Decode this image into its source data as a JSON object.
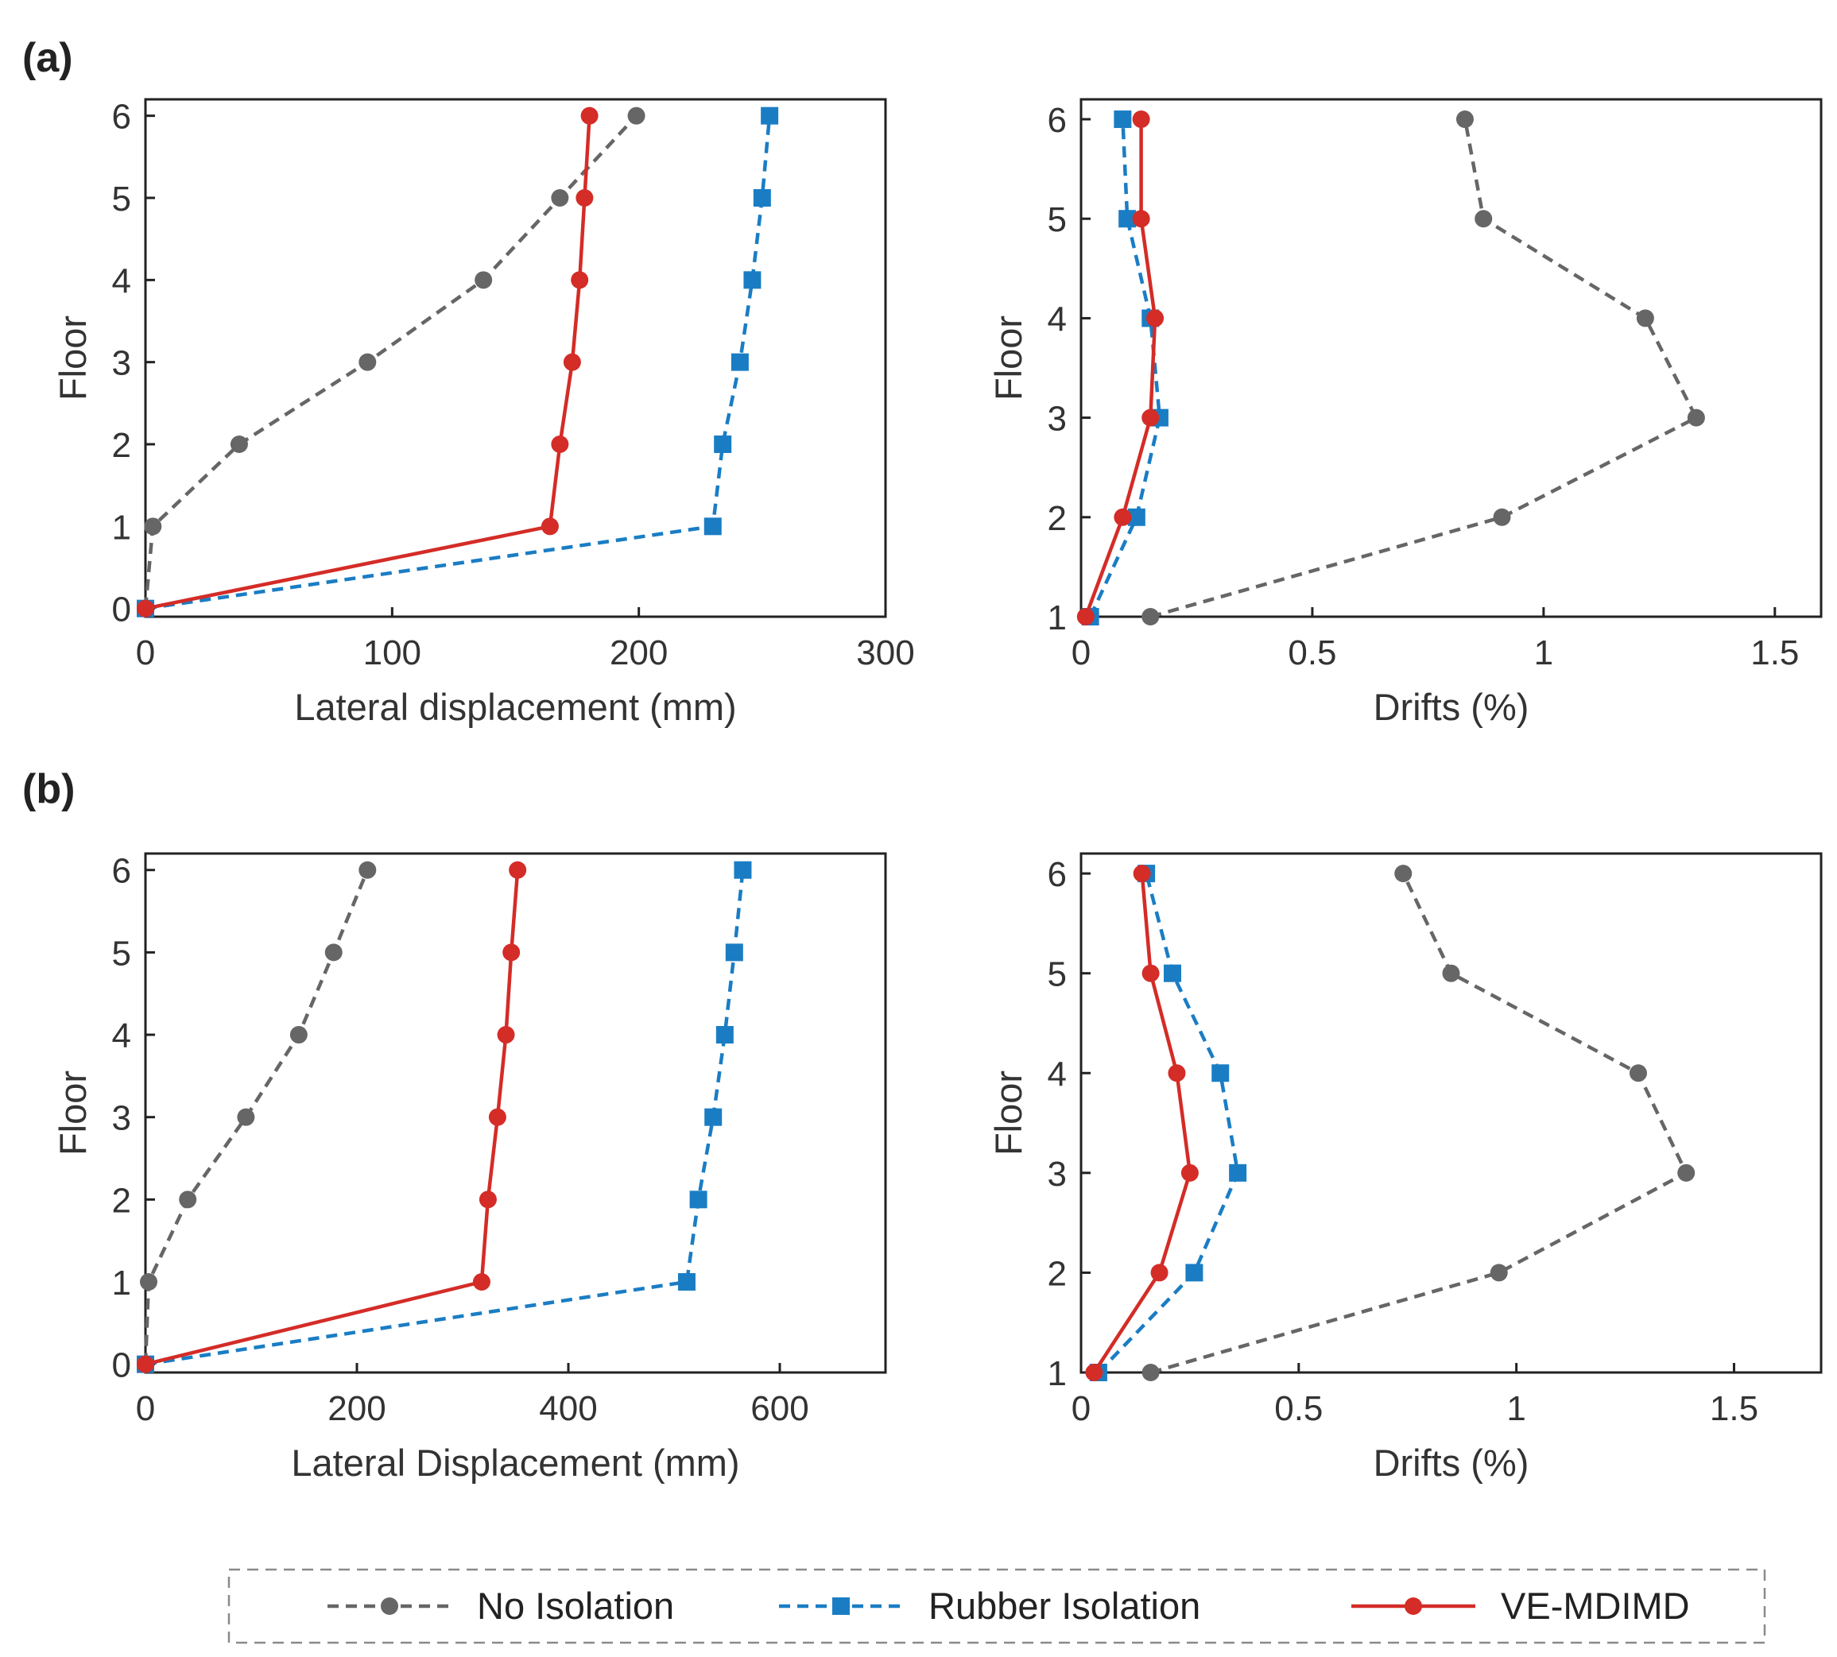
{
  "panel_labels": [
    "(a)",
    "(b)"
  ],
  "series_styles": [
    {
      "name": "No Isolation",
      "color": "#666666",
      "dash": "dashed",
      "marker": "circle"
    },
    {
      "name": "Rubber Isolation",
      "color": "#1a7dc4",
      "dash": "dashed",
      "marker": "square"
    },
    {
      "name": "VE-MDIMD",
      "color": "#d42c27",
      "dash": "solid",
      "marker": "circle"
    }
  ],
  "legend": {
    "entries": [
      "No Isolation",
      "Rubber Isolation",
      "VE-MDIMD"
    ],
    "placement": "bottom-center"
  },
  "chart_data": [
    {
      "id": "a-displacement",
      "panel": "(a)",
      "type": "line",
      "xlabel": "Lateral displacement (mm)",
      "ylabel": "Floor",
      "xlim": [
        0,
        300
      ],
      "ylim": [
        -0.1,
        6.2
      ],
      "xticks": [
        0,
        100,
        200,
        300
      ],
      "yticks": [
        0,
        1,
        2,
        3,
        4,
        5,
        6
      ],
      "y": [
        0,
        1,
        2,
        3,
        4,
        5,
        6
      ],
      "series": [
        {
          "name": "No Isolation",
          "x": [
            0,
            3,
            38,
            90,
            137,
            168,
            199
          ]
        },
        {
          "name": "Rubber Isolation",
          "x": [
            0,
            230,
            234,
            241,
            246,
            250,
            253
          ]
        },
        {
          "name": "VE-MDIMD",
          "x": [
            0,
            164,
            168,
            173,
            176,
            178,
            180
          ]
        }
      ]
    },
    {
      "id": "a-drift",
      "panel": "(a)",
      "type": "line",
      "xlabel": "Drifts (%)",
      "ylabel": "Floor",
      "xlim": [
        0,
        1.6
      ],
      "ylim": [
        1,
        6.2
      ],
      "xticks": [
        0,
        0.5,
        1,
        1.5
      ],
      "yticks": [
        1,
        2,
        3,
        4,
        5,
        6
      ],
      "y": [
        1,
        2,
        3,
        4,
        5,
        6
      ],
      "series": [
        {
          "name": "No Isolation",
          "x": [
            0.15,
            0.91,
            1.33,
            1.22,
            0.87,
            0.83
          ]
        },
        {
          "name": "Rubber Isolation",
          "x": [
            0.02,
            0.12,
            0.17,
            0.15,
            0.1,
            0.09
          ]
        },
        {
          "name": "VE-MDIMD",
          "x": [
            0.01,
            0.09,
            0.15,
            0.16,
            0.13,
            0.13
          ]
        }
      ]
    },
    {
      "id": "b-displacement",
      "panel": "(b)",
      "type": "line",
      "xlabel": "Lateral Displacement (mm)",
      "ylabel": "Floor",
      "xlim": [
        0,
        700
      ],
      "ylim": [
        -0.1,
        6.2
      ],
      "xticks": [
        0,
        200,
        400,
        600
      ],
      "yticks": [
        0,
        1,
        2,
        3,
        4,
        5,
        6
      ],
      "y": [
        0,
        1,
        2,
        3,
        4,
        5,
        6
      ],
      "series": [
        {
          "name": "No Isolation",
          "x": [
            0,
            3,
            40,
            95,
            145,
            178,
            210
          ]
        },
        {
          "name": "Rubber Isolation",
          "x": [
            0,
            512,
            523,
            537,
            548,
            557,
            565
          ]
        },
        {
          "name": "VE-MDIMD",
          "x": [
            0,
            318,
            324,
            333,
            341,
            346,
            352
          ]
        }
      ]
    },
    {
      "id": "b-drift",
      "panel": "(b)",
      "type": "line",
      "xlabel": "Drifts (%)",
      "ylabel": "Floor",
      "xlim": [
        0,
        1.7
      ],
      "ylim": [
        1,
        6.2
      ],
      "xticks": [
        0,
        0.5,
        1,
        1.5
      ],
      "yticks": [
        1,
        2,
        3,
        4,
        5,
        6
      ],
      "y": [
        1,
        2,
        3,
        4,
        5,
        6
      ],
      "series": [
        {
          "name": "No Isolation",
          "x": [
            0.16,
            0.96,
            1.39,
            1.28,
            0.85,
            0.74
          ]
        },
        {
          "name": "Rubber Isolation",
          "x": [
            0.04,
            0.26,
            0.36,
            0.32,
            0.21,
            0.15
          ]
        },
        {
          "name": "VE-MDIMD",
          "x": [
            0.03,
            0.18,
            0.25,
            0.22,
            0.16,
            0.14
          ]
        }
      ]
    }
  ]
}
